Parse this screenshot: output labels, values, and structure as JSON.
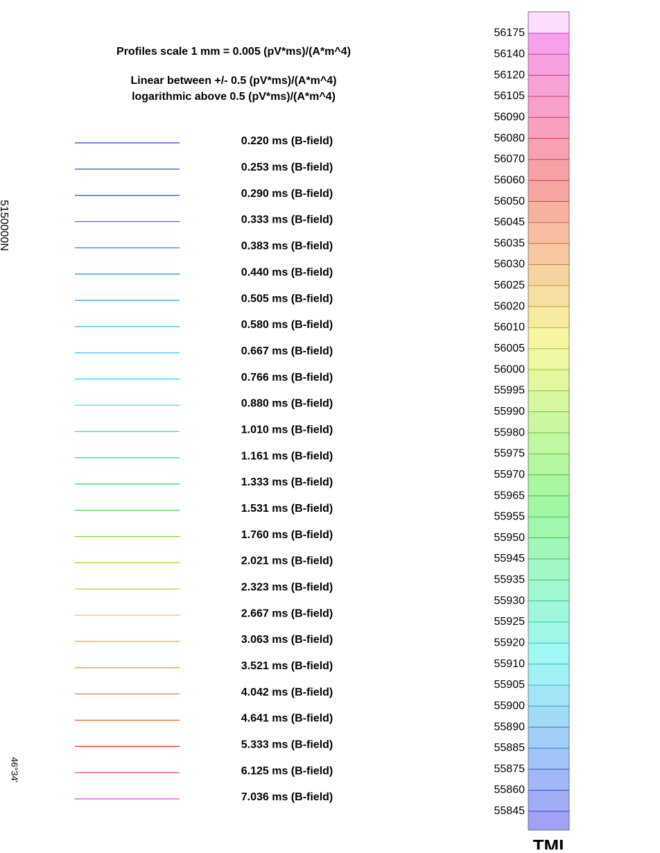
{
  "header": {
    "scale": "Profiles scale 1 mm = 0.005 (pV*ms)/(A*m^4)",
    "linear": "Linear between +/- 0.5 (pV*ms)/(A*m^4)",
    "log": "logarithmic above 0.5 (pV*ms)/(A*m^4)"
  },
  "legend": {
    "entries": [
      {
        "label": "0.220 ms (B-field)",
        "color": "#1f3fbf"
      },
      {
        "label": "0.253 ms (B-field)",
        "color": "#2850c8"
      },
      {
        "label": "0.290 ms (B-field)",
        "color": "#2a5fd0"
      },
      {
        "label": "0.333 ms (B-field)",
        "color": "#2f6fd8"
      },
      {
        "label": "0.383 ms (B-field)",
        "color": "#3080e0"
      },
      {
        "label": "0.440 ms (B-field)",
        "color": "#3090e6"
      },
      {
        "label": "0.505 ms (B-field)",
        "color": "#30a0ea"
      },
      {
        "label": "0.580 ms (B-field)",
        "color": "#30b0ee"
      },
      {
        "label": "0.667 ms (B-field)",
        "color": "#30c0f0"
      },
      {
        "label": "0.766 ms (B-field)",
        "color": "#30d0f0"
      },
      {
        "label": "0.880 ms (B-field)",
        "color": "#40e0e8"
      },
      {
        "label": "1.010 ms (B-field)",
        "color": "#30d8c8"
      },
      {
        "label": "1.161 ms (B-field)",
        "color": "#30d8a0"
      },
      {
        "label": "1.333 ms (B-field)",
        "color": "#30d870"
      },
      {
        "label": "1.531 ms (B-field)",
        "color": "#40d040"
      },
      {
        "label": "1.760 ms (B-field)",
        "color": "#70d830"
      },
      {
        "label": "2.021 ms (B-field)",
        "color": "#a0d830"
      },
      {
        "label": "2.323 ms (B-field)",
        "color": "#c8d030"
      },
      {
        "label": "2.667 ms (B-field)",
        "color": "#f0c830"
      },
      {
        "label": "3.063 ms (B-field)",
        "color": "#f0b030"
      },
      {
        "label": "3.521 ms (B-field)",
        "color": "#e8a030"
      },
      {
        "label": "4.042 ms (B-field)",
        "color": "#e08030"
      },
      {
        "label": "4.641 ms (B-field)",
        "color": "#e06020"
      },
      {
        "label": "5.333 ms (B-field)",
        "color": "#e03030"
      },
      {
        "label": "6.125 ms (B-field)",
        "color": "#f030a0"
      },
      {
        "label": "7.036 ms (B-field)",
        "color": "#f040d0"
      }
    ]
  },
  "colorbar": {
    "title": "TMI",
    "labels": [
      "56175",
      "56140",
      "56120",
      "56105",
      "56090",
      "56080",
      "56070",
      "56060",
      "56050",
      "56045",
      "56035",
      "56030",
      "56025",
      "56020",
      "56010",
      "56005",
      "56000",
      "55995",
      "55990",
      "55980",
      "55975",
      "55970",
      "55965",
      "55955",
      "55950",
      "55945",
      "55935",
      "55930",
      "55925",
      "55920",
      "55910",
      "55905",
      "55900",
      "55890",
      "55885",
      "55875",
      "55860",
      "55845"
    ]
  },
  "margin": {
    "northing": "5150000N",
    "latitude": "46°34'"
  }
}
